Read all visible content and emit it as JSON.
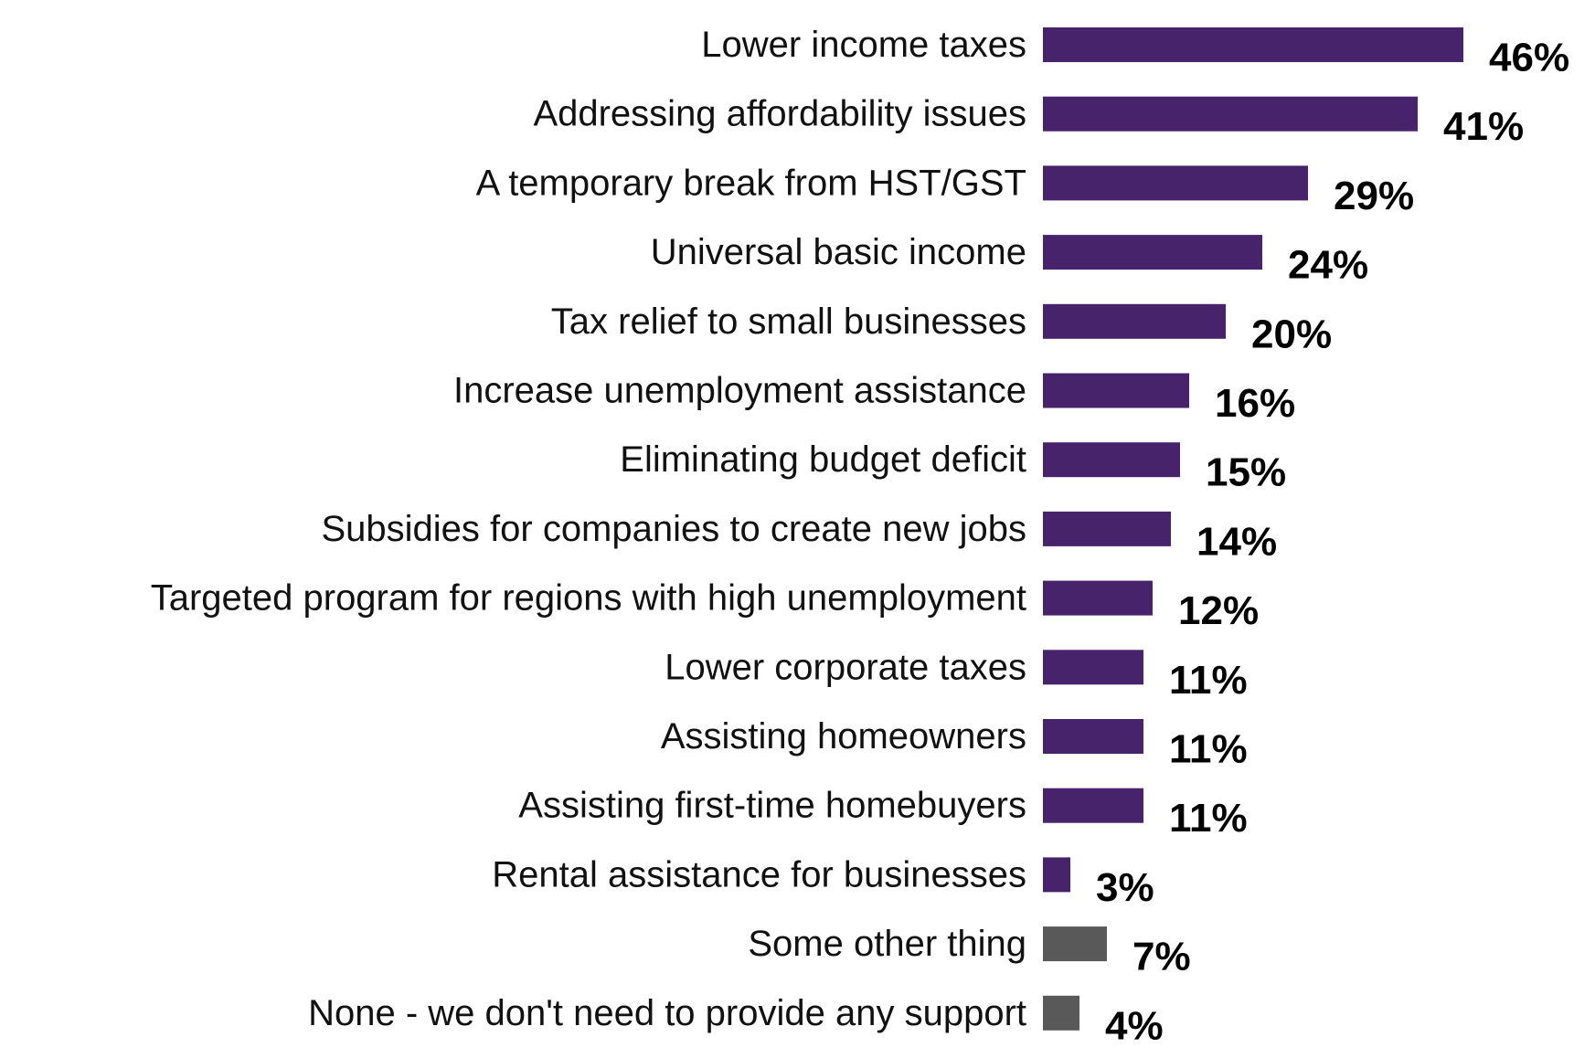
{
  "chart_data": {
    "type": "bar",
    "orientation": "horizontal",
    "title": "",
    "xlabel": "",
    "ylabel": "",
    "xlim": [
      0,
      46
    ],
    "grid": false,
    "legend": "none",
    "value_suffix": "%",
    "categories": [
      "Lower income taxes",
      "Addressing affordability issues",
      "A temporary break from HST/GST",
      "Universal basic income",
      "Tax relief to small businesses",
      "Increase unemployment assistance",
      "Eliminating budget deficit",
      "Subsidies for companies to create new jobs",
      "Targeted program for regions with high unemployment",
      "Lower corporate taxes",
      "Assisting homeowners",
      "Assisting first-time homebuyers",
      "Rental assistance for businesses",
      "Some other thing",
      "None - we don't need to provide any support"
    ],
    "values": [
      46,
      41,
      29,
      24,
      20,
      16,
      15,
      14,
      12,
      11,
      11,
      11,
      3,
      7,
      4
    ],
    "value_labels": [
      "46%",
      "41%",
      "29%",
      "24%",
      "20%",
      "16%",
      "15%",
      "14%",
      "12%",
      "11%",
      "11%",
      "11%",
      "3%",
      "7%",
      "4%"
    ],
    "bar_colors": [
      "#46236a",
      "#46236a",
      "#46236a",
      "#46236a",
      "#46236a",
      "#46236a",
      "#46236a",
      "#46236a",
      "#46236a",
      "#46236a",
      "#46236a",
      "#46236a",
      "#46236a",
      "#595959",
      "#595959"
    ]
  }
}
